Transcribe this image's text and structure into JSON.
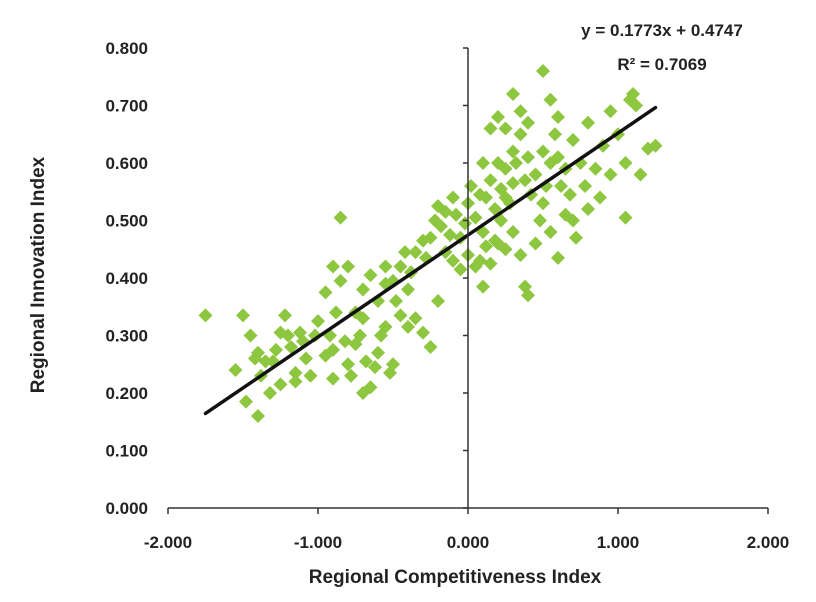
{
  "chart_data": {
    "type": "scatter",
    "title": "",
    "xlabel": "Regional Competitiveness Index",
    "ylabel": "Regional Innovation Index",
    "xlim": [
      -2.0,
      2.0
    ],
    "ylim": [
      0.0,
      0.8
    ],
    "x_ticks": [
      "-2.000",
      "-1.000",
      "0.000",
      "1.000",
      "2.000"
    ],
    "y_ticks": [
      "0.000",
      "0.100",
      "0.200",
      "0.300",
      "0.400",
      "0.500",
      "0.600",
      "0.700",
      "0.800"
    ],
    "grid": false,
    "legend": "none",
    "marker_color": "#8dc63f",
    "trendline_color": "#111111",
    "trendline": {
      "slope": 0.1773,
      "intercept": 0.4747,
      "x_range": [
        -1.75,
        1.25
      ],
      "equation": "y = 0.1773x + 0.4747",
      "r_squared": "R² = 0.7069"
    },
    "points": [
      [
        -1.75,
        0.335
      ],
      [
        -1.5,
        0.335
      ],
      [
        -1.45,
        0.3
      ],
      [
        -1.42,
        0.26
      ],
      [
        -1.4,
        0.27
      ],
      [
        -1.38,
        0.23
      ],
      [
        -1.35,
        0.255
      ],
      [
        -1.32,
        0.2
      ],
      [
        -1.3,
        0.255
      ],
      [
        -1.28,
        0.275
      ],
      [
        -1.25,
        0.305
      ],
      [
        -1.22,
        0.335
      ],
      [
        -1.2,
        0.3
      ],
      [
        -1.18,
        0.28
      ],
      [
        -1.15,
        0.235
      ],
      [
        -1.12,
        0.305
      ],
      [
        -1.1,
        0.29
      ],
      [
        -1.08,
        0.26
      ],
      [
        -1.05,
        0.23
      ],
      [
        -1.02,
        0.3
      ],
      [
        -1.55,
        0.24
      ],
      [
        -1.48,
        0.185
      ],
      [
        -1.4,
        0.16
      ],
      [
        -1.25,
        0.215
      ],
      [
        -1.15,
        0.22
      ],
      [
        -1.0,
        0.325
      ],
      [
        -0.95,
        0.265
      ],
      [
        -0.92,
        0.3
      ],
      [
        -0.9,
        0.275
      ],
      [
        -0.88,
        0.34
      ],
      [
        -0.85,
        0.505
      ],
      [
        -0.82,
        0.29
      ],
      [
        -0.8,
        0.25
      ],
      [
        -0.78,
        0.23
      ],
      [
        -0.75,
        0.285
      ],
      [
        -0.72,
        0.3
      ],
      [
        -0.7,
        0.33
      ],
      [
        -0.68,
        0.255
      ],
      [
        -0.65,
        0.21
      ],
      [
        -0.62,
        0.245
      ],
      [
        -0.6,
        0.27
      ],
      [
        -0.58,
        0.3
      ],
      [
        -0.55,
        0.315
      ],
      [
        -0.52,
        0.235
      ],
      [
        -0.5,
        0.25
      ],
      [
        -0.9,
        0.225
      ],
      [
        -0.7,
        0.2
      ],
      [
        -0.6,
        0.36
      ],
      [
        -0.75,
        0.34
      ],
      [
        -0.55,
        0.39
      ],
      [
        -0.95,
        0.375
      ],
      [
        -0.9,
        0.42
      ],
      [
        -0.85,
        0.395
      ],
      [
        -0.8,
        0.42
      ],
      [
        -0.7,
        0.38
      ],
      [
        -0.65,
        0.405
      ],
      [
        -0.55,
        0.42
      ],
      [
        -0.5,
        0.395
      ],
      [
        -0.48,
        0.36
      ],
      [
        -0.45,
        0.42
      ],
      [
        -0.42,
        0.445
      ],
      [
        -0.4,
        0.38
      ],
      [
        -0.38,
        0.41
      ],
      [
        -0.35,
        0.445
      ],
      [
        -0.3,
        0.465
      ],
      [
        -0.45,
        0.335
      ],
      [
        -0.35,
        0.33
      ],
      [
        -0.3,
        0.305
      ],
      [
        -0.25,
        0.28
      ],
      [
        -0.4,
        0.315
      ],
      [
        -0.28,
        0.435
      ],
      [
        -0.25,
        0.47
      ],
      [
        -0.22,
        0.5
      ],
      [
        -0.2,
        0.525
      ],
      [
        -0.18,
        0.49
      ],
      [
        -0.15,
        0.515
      ],
      [
        -0.12,
        0.475
      ],
      [
        -0.1,
        0.54
      ],
      [
        -0.08,
        0.51
      ],
      [
        -0.05,
        0.47
      ],
      [
        -0.02,
        0.495
      ],
      [
        0.0,
        0.53
      ],
      [
        0.02,
        0.56
      ],
      [
        0.05,
        0.505
      ],
      [
        0.08,
        0.545
      ],
      [
        -0.2,
        0.36
      ],
      [
        -0.1,
        0.43
      ],
      [
        0.0,
        0.44
      ],
      [
        -0.05,
        0.415
      ],
      [
        0.05,
        0.42
      ],
      [
        -0.15,
        0.445
      ],
      [
        0.1,
        0.48
      ],
      [
        0.12,
        0.54
      ],
      [
        0.15,
        0.57
      ],
      [
        0.18,
        0.52
      ],
      [
        0.2,
        0.6
      ],
      [
        0.22,
        0.555
      ],
      [
        0.25,
        0.59
      ],
      [
        0.28,
        0.53
      ],
      [
        0.3,
        0.565
      ],
      [
        0.1,
        0.6
      ],
      [
        0.15,
        0.66
      ],
      [
        0.2,
        0.68
      ],
      [
        0.25,
        0.66
      ],
      [
        0.3,
        0.62
      ],
      [
        0.32,
        0.6
      ],
      [
        0.35,
        0.65
      ],
      [
        0.38,
        0.57
      ],
      [
        0.4,
        0.61
      ],
      [
        0.42,
        0.545
      ],
      [
        0.1,
        0.385
      ],
      [
        0.15,
        0.425
      ],
      [
        0.2,
        0.46
      ],
      [
        0.25,
        0.45
      ],
      [
        0.3,
        0.48
      ],
      [
        0.35,
        0.44
      ],
      [
        0.38,
        0.385
      ],
      [
        0.4,
        0.37
      ],
      [
        0.45,
        0.46
      ],
      [
        0.48,
        0.5
      ],
      [
        0.45,
        0.58
      ],
      [
        0.5,
        0.62
      ],
      [
        0.52,
        0.56
      ],
      [
        0.55,
        0.6
      ],
      [
        0.58,
        0.65
      ],
      [
        0.6,
        0.61
      ],
      [
        0.62,
        0.56
      ],
      [
        0.65,
        0.59
      ],
      [
        0.68,
        0.545
      ],
      [
        0.7,
        0.5
      ],
      [
        0.5,
        0.76
      ],
      [
        0.55,
        0.71
      ],
      [
        0.6,
        0.68
      ],
      [
        0.7,
        0.64
      ],
      [
        0.75,
        0.6
      ],
      [
        0.78,
        0.56
      ],
      [
        0.8,
        0.52
      ],
      [
        0.85,
        0.59
      ],
      [
        0.9,
        0.63
      ],
      [
        0.95,
        0.58
      ],
      [
        0.72,
        0.47
      ],
      [
        0.6,
        0.435
      ],
      [
        0.55,
        0.48
      ],
      [
        0.5,
        0.53
      ],
      [
        0.65,
        0.51
      ],
      [
        1.0,
        0.65
      ],
      [
        1.05,
        0.6
      ],
      [
        1.08,
        0.71
      ],
      [
        1.1,
        0.72
      ],
      [
        1.12,
        0.7
      ],
      [
        1.15,
        0.58
      ],
      [
        1.2,
        0.625
      ],
      [
        1.25,
        0.63
      ],
      [
        1.05,
        0.505
      ],
      [
        0.95,
        0.69
      ],
      [
        0.8,
        0.67
      ],
      [
        0.88,
        0.54
      ],
      [
        0.4,
        0.67
      ],
      [
        0.35,
        0.69
      ],
      [
        0.3,
        0.72
      ],
      [
        0.25,
        0.54
      ],
      [
        0.22,
        0.5
      ],
      [
        0.18,
        0.465
      ],
      [
        0.12,
        0.455
      ],
      [
        0.08,
        0.43
      ]
    ]
  }
}
